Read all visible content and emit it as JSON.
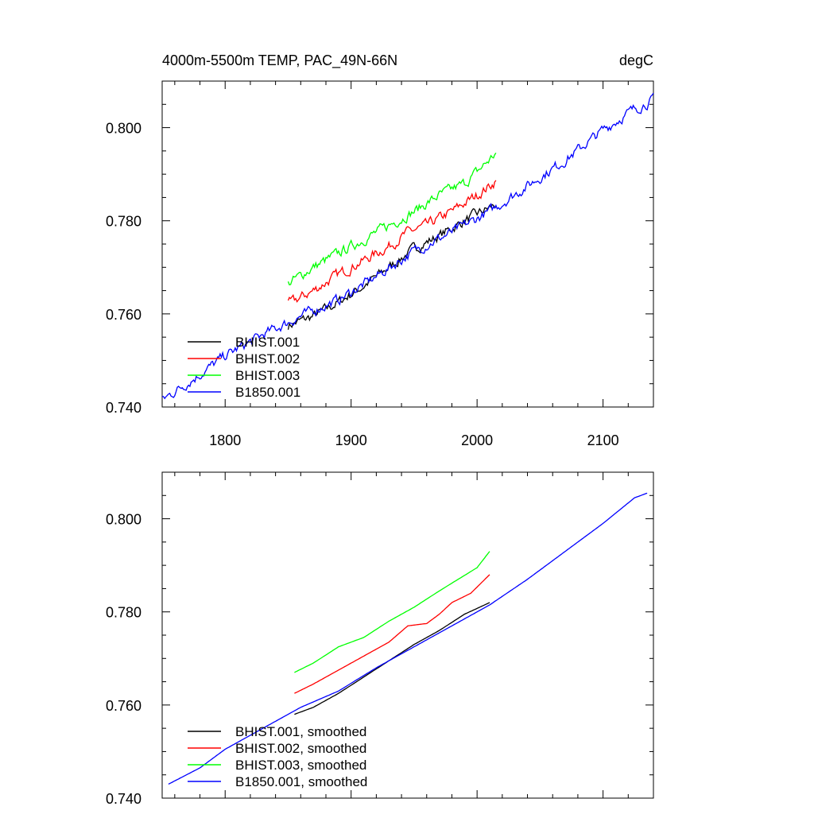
{
  "chart_data": [
    {
      "type": "line",
      "title": "4000m-5500m TEMP, PAC_49N-66N",
      "units": "degC",
      "xlim": [
        1750,
        2140
      ],
      "ylim": [
        0.74,
        0.81
      ],
      "x_ticks": [
        1800,
        1900,
        2000,
        2100
      ],
      "y_ticks": [
        0.74,
        0.76,
        0.78,
        0.8
      ],
      "x_tick_labels": [
        "1800",
        "1900",
        "2000",
        "2100"
      ],
      "y_tick_labels": [
        "0.740",
        "0.760",
        "0.780",
        "0.800"
      ],
      "legend_position": "bottom-left",
      "series": [
        {
          "name": "BHIST.001",
          "color": "#000000",
          "noise": 0.0009,
          "points": [
            [
              1850,
              0.7575
            ],
            [
              1870,
              0.7595
            ],
            [
              1890,
              0.7625
            ],
            [
              1910,
              0.766
            ],
            [
              1930,
              0.77
            ],
            [
              1950,
              0.774
            ],
            [
              1970,
              0.7768
            ],
            [
              1990,
              0.78
            ],
            [
              2015,
              0.7835
            ]
          ]
        },
        {
          "name": "BHIST.002",
          "color": "#ff0000",
          "noise": 0.0009,
          "points": [
            [
              1850,
              0.762
            ],
            [
              1870,
              0.765
            ],
            [
              1890,
              0.7685
            ],
            [
              1910,
              0.7715
            ],
            [
              1930,
              0.7745
            ],
            [
              1945,
              0.7775
            ],
            [
              1960,
              0.779
            ],
            [
              1980,
              0.782
            ],
            [
              2000,
              0.7855
            ],
            [
              2015,
              0.7885
            ]
          ]
        },
        {
          "name": "BHIST.003",
          "color": "#00ff00",
          "noise": 0.0009,
          "points": [
            [
              1850,
              0.7665
            ],
            [
              1870,
              0.77
            ],
            [
              1890,
              0.773
            ],
            [
              1910,
              0.776
            ],
            [
              1930,
              0.779
            ],
            [
              1950,
              0.782
            ],
            [
              1970,
              0.7855
            ],
            [
              1990,
              0.788
            ],
            [
              2000,
              0.7905
            ],
            [
              2015,
              0.7945
            ]
          ]
        },
        {
          "name": "B1850.001",
          "color": "#0000ff",
          "noise": 0.0009,
          "points": [
            [
              1750,
              0.7415
            ],
            [
              1780,
              0.747
            ],
            [
              1800,
              0.751
            ],
            [
              1830,
              0.7555
            ],
            [
              1860,
              0.7595
            ],
            [
              1890,
              0.763
            ],
            [
              1920,
              0.768
            ],
            [
              1950,
              0.7735
            ],
            [
              1980,
              0.7775
            ],
            [
              2010,
              0.782
            ],
            [
              2040,
              0.7875
            ],
            [
              2070,
              0.793
            ],
            [
              2100,
              0.7995
            ],
            [
              2125,
              0.804
            ],
            [
              2140,
              0.806
            ]
          ]
        }
      ]
    },
    {
      "type": "line",
      "title": "",
      "xlim": [
        1750,
        2140
      ],
      "ylim": [
        0.74,
        0.81
      ],
      "x_ticks": [
        1800,
        1900,
        2000,
        2100
      ],
      "y_ticks": [
        0.74,
        0.76,
        0.78,
        0.8
      ],
      "x_tick_labels": [],
      "y_tick_labels": [
        "0.740",
        "0.760",
        "0.780",
        "0.800"
      ],
      "legend_position": "bottom-left",
      "series": [
        {
          "name": "BHIST.001, smoothed",
          "color": "#000000",
          "noise": 0,
          "points": [
            [
              1855,
              0.758
            ],
            [
              1870,
              0.7595
            ],
            [
              1890,
              0.7625
            ],
            [
              1910,
              0.766
            ],
            [
              1930,
              0.7695
            ],
            [
              1950,
              0.773
            ],
            [
              1970,
              0.776
            ],
            [
              1990,
              0.7795
            ],
            [
              2010,
              0.782
            ]
          ]
        },
        {
          "name": "BHIST.002, smoothed",
          "color": "#ff0000",
          "noise": 0,
          "points": [
            [
              1855,
              0.7625
            ],
            [
              1870,
              0.7645
            ],
            [
              1890,
              0.7675
            ],
            [
              1910,
              0.7705
            ],
            [
              1930,
              0.7735
            ],
            [
              1945,
              0.777
            ],
            [
              1960,
              0.7775
            ],
            [
              1970,
              0.7795
            ],
            [
              1980,
              0.782
            ],
            [
              1995,
              0.784
            ],
            [
              2010,
              0.788
            ]
          ]
        },
        {
          "name": "BHIST.003, smoothed",
          "color": "#00ff00",
          "noise": 0,
          "points": [
            [
              1855,
              0.767
            ],
            [
              1870,
              0.769
            ],
            [
              1890,
              0.7725
            ],
            [
              1910,
              0.7745
            ],
            [
              1930,
              0.778
            ],
            [
              1950,
              0.781
            ],
            [
              1970,
              0.7845
            ],
            [
              1985,
              0.787
            ],
            [
              2000,
              0.7895
            ],
            [
              2010,
              0.793
            ]
          ]
        },
        {
          "name": "B1850.001, smoothed",
          "color": "#0000ff",
          "noise": 0,
          "points": [
            [
              1755,
              0.743
            ],
            [
              1780,
              0.7465
            ],
            [
              1800,
              0.7505
            ],
            [
              1830,
              0.755
            ],
            [
              1860,
              0.7595
            ],
            [
              1890,
              0.763
            ],
            [
              1920,
              0.768
            ],
            [
              1950,
              0.7725
            ],
            [
              1980,
              0.777
            ],
            [
              2010,
              0.7815
            ],
            [
              2040,
              0.787
            ],
            [
              2070,
              0.793
            ],
            [
              2100,
              0.799
            ],
            [
              2125,
              0.8045
            ],
            [
              2135,
              0.8055
            ]
          ]
        }
      ]
    }
  ]
}
